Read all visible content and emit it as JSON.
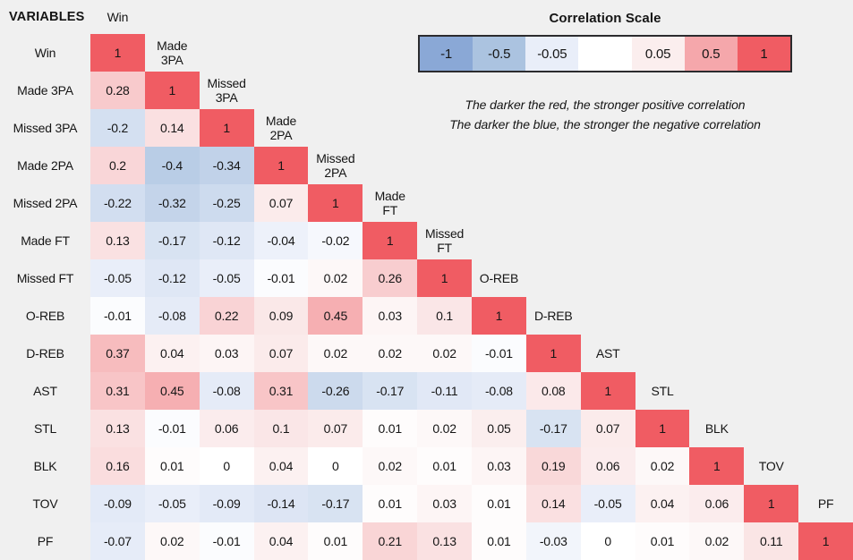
{
  "page": {
    "background": "#f0f0f0",
    "text_color": "#151515"
  },
  "header": {
    "variables_label": "VARIABLES"
  },
  "legend": {
    "title": "Correlation Scale",
    "segments": [
      {
        "label": "-1",
        "color": "#8aa8d6"
      },
      {
        "label": "-0.5",
        "color": "#abc3e0"
      },
      {
        "label": "-0.05",
        "color": "#e9eef9"
      },
      {
        "label": "",
        "color": "#ffffff"
      },
      {
        "label": "0.05",
        "color": "#fbeeee"
      },
      {
        "label": "0.5",
        "color": "#f5a7ab"
      },
      {
        "label": "1",
        "color": "#f05c63"
      }
    ],
    "notes": [
      "The darker the red, the stronger positive correlation",
      "The darker the blue, the stronger the negative correlation"
    ]
  },
  "chart_data": {
    "type": "heatmap",
    "subtype": "lower-triangular-correlation-matrix",
    "title": "Correlation Scale",
    "variables": [
      "Win",
      "Made 3PA",
      "Missed 3PA",
      "Made 2PA",
      "Missed 2PA",
      "Made FT",
      "Missed FT",
      "O-REB",
      "D-REB",
      "AST",
      "STL",
      "BLK",
      "TOV",
      "PF"
    ],
    "rows": [
      {
        "label": "Win",
        "values": [
          1
        ]
      },
      {
        "label": "Made 3PA",
        "values": [
          0.28,
          1
        ]
      },
      {
        "label": "Missed 3PA",
        "values": [
          -0.2,
          0.14,
          1
        ]
      },
      {
        "label": "Made 2PA",
        "values": [
          0.2,
          -0.4,
          -0.34,
          1
        ]
      },
      {
        "label": "Missed 2PA",
        "values": [
          -0.22,
          -0.32,
          -0.25,
          0.07,
          1
        ]
      },
      {
        "label": "Made FT",
        "values": [
          0.13,
          -0.17,
          -0.12,
          -0.04,
          -0.02,
          1
        ]
      },
      {
        "label": "Missed FT",
        "values": [
          -0.05,
          -0.12,
          -0.05,
          -0.01,
          0.02,
          0.26,
          1
        ]
      },
      {
        "label": "O-REB",
        "values": [
          -0.01,
          -0.08,
          0.22,
          0.09,
          0.45,
          0.03,
          0.1,
          1
        ]
      },
      {
        "label": "D-REB",
        "values": [
          0.37,
          0.04,
          0.03,
          0.07,
          0.02,
          0.02,
          0.02,
          -0.01,
          1
        ]
      },
      {
        "label": "AST",
        "values": [
          0.31,
          0.45,
          -0.08,
          0.31,
          -0.26,
          -0.17,
          -0.11,
          -0.08,
          0.08,
          1
        ]
      },
      {
        "label": "STL",
        "values": [
          0.13,
          -0.01,
          0.06,
          0.1,
          0.07,
          0.01,
          0.02,
          0.05,
          -0.17,
          0.07,
          1
        ]
      },
      {
        "label": "BLK",
        "values": [
          0.16,
          0.01,
          0,
          0.04,
          0,
          0.02,
          0.01,
          0.03,
          0.19,
          0.06,
          0.02,
          1
        ]
      },
      {
        "label": "TOV",
        "values": [
          -0.09,
          -0.05,
          -0.09,
          -0.14,
          -0.17,
          0.01,
          0.03,
          0.01,
          0.14,
          -0.05,
          0.04,
          0.06,
          1
        ]
      },
      {
        "label": "PF",
        "values": [
          -0.07,
          0.02,
          -0.01,
          0.04,
          0.01,
          0.21,
          0.13,
          0.01,
          -0.03,
          0,
          0.01,
          0.02,
          0.11,
          1
        ]
      }
    ],
    "color_scale": {
      "stops": [
        [
          -1,
          "#8aa8d6"
        ],
        [
          -0.5,
          "#abc3e0"
        ],
        [
          -0.05,
          "#e9eef9"
        ],
        [
          0,
          "#ffffff"
        ],
        [
          0.05,
          "#fbeeee"
        ],
        [
          0.5,
          "#f5a7ab"
        ],
        [
          1,
          "#f05c63"
        ]
      ]
    },
    "legend_position": "top-right",
    "grid": false
  }
}
